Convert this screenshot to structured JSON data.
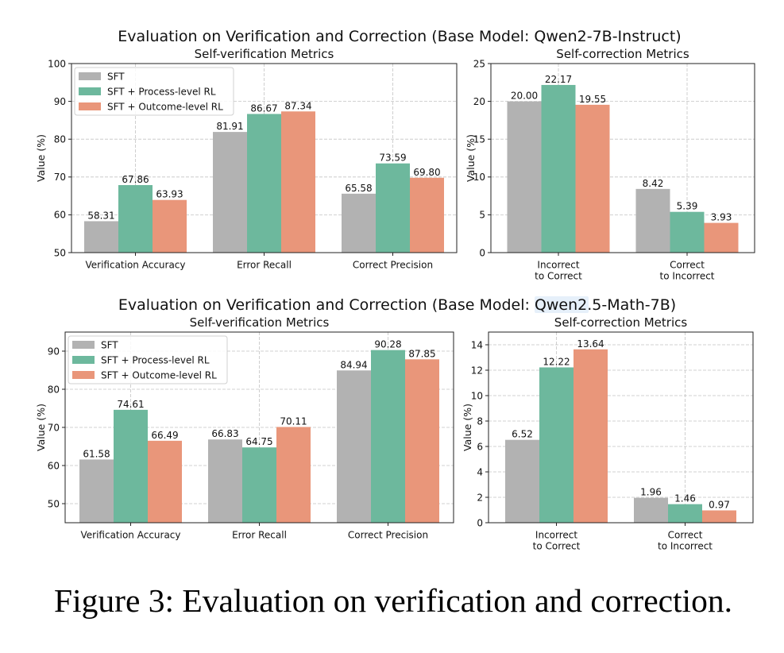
{
  "figure": {
    "rows": [
      {
        "suptitle": "Evaluation on Verification and Correction (Base Model: Qwen2-7B-Instruct)"
      },
      {
        "suptitle": "Evaluation on Verification and Correction (Base Model: Qwen2.5-Math-7B)"
      }
    ],
    "caption": "Figure 3: Evaluation on verification and correction."
  },
  "chart_data": [
    {
      "type": "bar",
      "title": "Self-verification Metrics",
      "ylabel": "Value (%)",
      "ylim": [
        50,
        100
      ],
      "yticks": [
        50,
        60,
        70,
        80,
        90,
        100
      ],
      "grid": true,
      "legend": "upper left",
      "categories": [
        "Verification Accuracy",
        "Error Recall",
        "Correct Precision"
      ],
      "series": [
        {
          "name": "SFT",
          "color": "#b2b2b2",
          "values": [
            58.31,
            81.91,
            65.58
          ]
        },
        {
          "name": "SFT + Process-level RL",
          "color": "#6db89d",
          "values": [
            67.86,
            86.67,
            73.59
          ]
        },
        {
          "name": "SFT + Outcome-level RL",
          "color": "#e9967a",
          "values": [
            63.93,
            87.34,
            69.8
          ]
        }
      ]
    },
    {
      "type": "bar",
      "title": "Self-correction Metrics",
      "ylabel": "Value (%)",
      "ylim": [
        0,
        25
      ],
      "yticks": [
        0,
        5,
        10,
        15,
        20,
        25
      ],
      "grid": true,
      "categories": [
        [
          "Incorrect",
          "to Correct"
        ],
        [
          "Correct",
          "to Incorrect"
        ]
      ],
      "series": [
        {
          "color": "#b2b2b2",
          "values": [
            20.0,
            8.42
          ]
        },
        {
          "color": "#6db89d",
          "values": [
            22.17,
            5.39
          ]
        },
        {
          "color": "#e9967a",
          "values": [
            19.55,
            3.93
          ]
        }
      ]
    },
    {
      "type": "bar",
      "title": "Self-verification Metrics",
      "ylabel": "Value (%)",
      "ylim": [
        45,
        95
      ],
      "yticks": [
        50,
        60,
        70,
        80,
        90
      ],
      "grid": true,
      "legend": "upper left",
      "categories": [
        "Verification Accuracy",
        "Error Recall",
        "Correct Precision"
      ],
      "series": [
        {
          "name": "SFT",
          "color": "#b2b2b2",
          "values": [
            61.58,
            66.83,
            84.94
          ]
        },
        {
          "name": "SFT + Process-level RL",
          "color": "#6db89d",
          "values": [
            74.61,
            64.75,
            90.28
          ]
        },
        {
          "name": "SFT + Outcome-level RL",
          "color": "#e9967a",
          "values": [
            66.49,
            70.11,
            87.85
          ]
        }
      ]
    },
    {
      "type": "bar",
      "title": "Self-correction Metrics",
      "ylabel": "Value (%)",
      "ylim": [
        0,
        15
      ],
      "yticks": [
        0,
        2,
        4,
        6,
        8,
        10,
        12,
        14
      ],
      "grid": true,
      "categories": [
        [
          "Incorrect",
          "to Correct"
        ],
        [
          "Correct",
          "to Incorrect"
        ]
      ],
      "series": [
        {
          "color": "#b2b2b2",
          "values": [
            6.52,
            1.96
          ]
        },
        {
          "color": "#6db89d",
          "values": [
            12.22,
            1.46
          ]
        },
        {
          "color": "#e9967a",
          "values": [
            13.64,
            0.97
          ]
        }
      ]
    }
  ]
}
